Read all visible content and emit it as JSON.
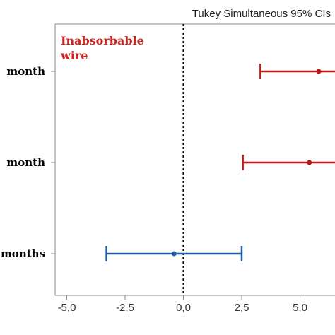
{
  "chart_data": {
    "type": "interval",
    "title": "Tukey Simultaneous 95% CIs",
    "annotation": [
      "Inabsorbable",
      "wire"
    ],
    "xlim": [
      -5.5,
      6.5
    ],
    "x_ticks": [
      -5.0,
      -2.5,
      0.0,
      2.5,
      5.0
    ],
    "x_tick_labels": [
      "-5,0",
      "-2,5",
      "0,0",
      "2,5",
      "5,0"
    ],
    "reference_line": 0,
    "intervals": [
      {
        "category": "month",
        "estimate": 5.8,
        "lower": 3.3,
        "upper": 7.5,
        "color": "#c0181a"
      },
      {
        "category": "month",
        "estimate": 5.4,
        "lower": 2.55,
        "upper": 7.5,
        "color": "#c0181a"
      },
      {
        "category": "months",
        "estimate": -0.4,
        "lower": -3.3,
        "upper": 2.5,
        "color": "#1f5fa6"
      }
    ],
    "colors": {
      "annotation": "#d0231f",
      "axis": "#888888",
      "reference": "#000000"
    }
  }
}
